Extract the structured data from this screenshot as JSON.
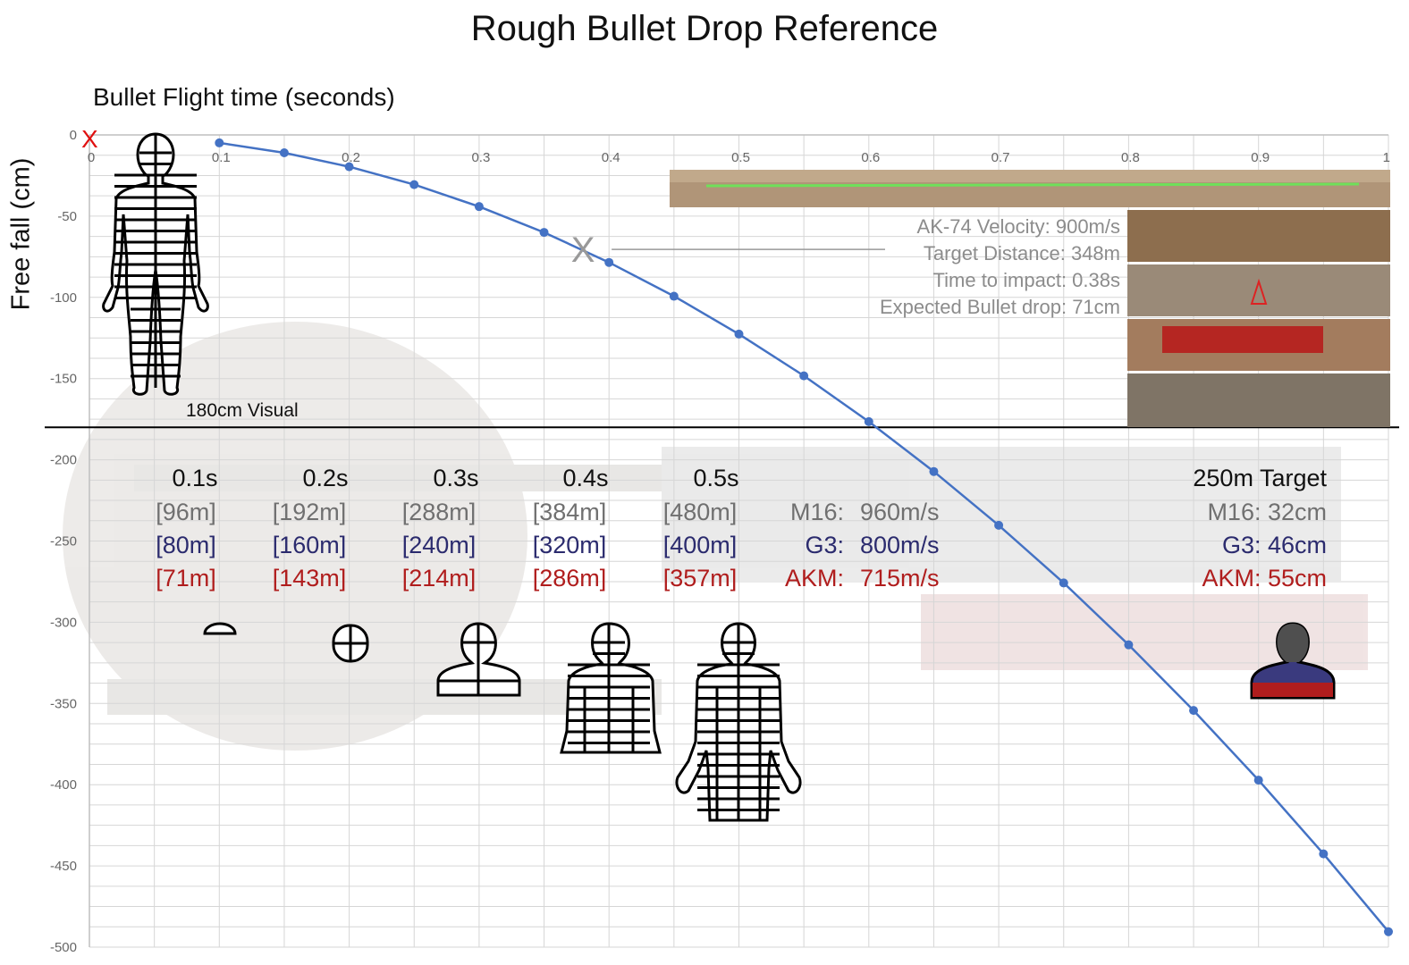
{
  "title": "Rough Bullet Drop Reference",
  "chart_data": {
    "type": "line",
    "title": "Rough Bullet Drop Reference",
    "xlabel": "Bullet Flight time (seconds)",
    "ylabel": "Free fall (cm)",
    "xlim": [
      0,
      1
    ],
    "ylim": [
      -500,
      0
    ],
    "x_ticks": [
      "0",
      "0.1",
      "0.2",
      "0.3",
      "0.4",
      "0.5",
      "0.6",
      "0.7",
      "0.8",
      "0.9",
      "1"
    ],
    "y_ticks": [
      "0",
      "-50",
      "-100",
      "-150",
      "-200",
      "-250",
      "-300",
      "-350",
      "-400",
      "-450",
      "-500"
    ],
    "grid": true,
    "series": [
      {
        "color": "#4472c4",
        "points": [
          [
            0.1,
            -4.9
          ],
          [
            0.15,
            -11.0
          ],
          [
            0.2,
            -19.6
          ],
          [
            0.25,
            -30.6
          ],
          [
            0.3,
            -44.1
          ],
          [
            0.35,
            -60.0
          ],
          [
            0.4,
            -78.5
          ],
          [
            0.45,
            -99.3
          ],
          [
            0.5,
            -122.6
          ],
          [
            0.55,
            -148.3
          ],
          [
            0.6,
            -176.5
          ],
          [
            0.65,
            -207.2
          ],
          [
            0.7,
            -240.3
          ],
          [
            0.75,
            -275.8
          ],
          [
            0.8,
            -313.9
          ],
          [
            0.85,
            -354.3
          ],
          [
            0.9,
            -397.2
          ],
          [
            0.95,
            -442.6
          ],
          [
            1.0,
            -490.5
          ]
        ]
      }
    ],
    "reference_line_y": -180,
    "reference_label": "180cm Visual",
    "target_marker": {
      "x": 0.38,
      "y": -71
    }
  },
  "origin_marker": "X",
  "target_marker_label": "X",
  "info": [
    "AK-74 Velocity: 900m/s",
    "Target Distance: 348m",
    "Time to impact: 0.38s",
    "Expected Bullet drop: 71cm"
  ],
  "table": {
    "times": [
      "0.1s",
      "0.2s",
      "0.3s",
      "0.4s",
      "0.5s"
    ],
    "m16_dist": [
      "[96m]",
      "[192m]",
      "[288m]",
      "[384m]",
      "[480m]"
    ],
    "g3_dist": [
      "[80m]",
      "[160m]",
      "[240m]",
      "[320m]",
      "[400m]"
    ],
    "akm_dist": [
      "[71m]",
      "[143m]",
      "[214m]",
      "[286m]",
      "[357m]"
    ],
    "weapons": [
      {
        "name": "M16:",
        "velocity": "960m/s"
      },
      {
        "name": "G3:",
        "velocity": "800m/s"
      },
      {
        "name": "AKM:",
        "velocity": "715m/s"
      }
    ]
  },
  "target": {
    "title": "250m Target",
    "rows": [
      "M16: 32cm",
      "G3: 46cm",
      "AKM: 55cm"
    ],
    "colors": {
      "m16": "#4f4f4f",
      "g3": "#3a3a7e",
      "akm": "#b01d1d"
    }
  },
  "colors": {
    "line": "#4472c4",
    "m16": "#707070",
    "g3": "#2b2b6e",
    "akm": "#b01d1d",
    "grid": "#d6d6d6"
  },
  "icons": [
    "human-silhouette-icon",
    "head-silhouette-icon",
    "bust-silhouette-icon",
    "torso-silhouette-icon",
    "body-silhouette-icon",
    "target-bust-icon",
    "gameplay-screenshot"
  ]
}
